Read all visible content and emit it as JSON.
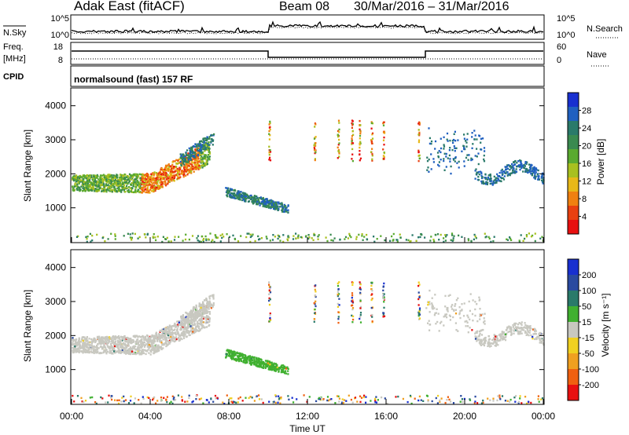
{
  "header": {
    "station": "Adak East (fitACF)",
    "beam": "Beam 08",
    "dates": "30/Mar/2016 – 31/Mar/2016"
  },
  "noise_panel": {
    "left_label": "N.Sky",
    "right_label": "N.Search",
    "left_ticks": [
      "10^5",
      "10^0"
    ],
    "right_ticks": [
      "10^5",
      "10^0"
    ]
  },
  "freq_panel": {
    "left_label_top": "Freq.",
    "left_label_bottom": "[MHz]",
    "right_label": "Nave",
    "left_ticks": [
      "18",
      "8"
    ],
    "right_ticks": [
      "60",
      "0"
    ]
  },
  "cpid_panel": {
    "label": "CPID",
    "program": "normalsound (fast) 157 RF"
  },
  "colors": {
    "power_scale": [
      "#1830d0",
      "#2060c0",
      "#2a7a6a",
      "#3a8a50",
      "#5aaa30",
      "#a8c020",
      "#e8b818",
      "#f08010",
      "#e84010",
      "#e81010"
    ],
    "velocity_scale": [
      "#1830d0",
      "#2a4aa0",
      "#2a7a6a",
      "#40b030",
      "#c8c8c0",
      "#f0d020",
      "#f0a020",
      "#f06010",
      "#e81010"
    ],
    "ground_scatter": "#c8c8c0"
  },
  "chart_data": [
    {
      "type": "heatmap",
      "name": "power",
      "ylabel": "Slant Range [km]",
      "y_ticks": [
        "4000",
        "3000",
        "2000",
        "1000"
      ],
      "ylim": [
        0,
        4500
      ],
      "colorbar_label": "Power [dB]",
      "colorbar_ticks": [
        "28",
        "24",
        "20",
        "16",
        "12",
        "8",
        "4"
      ],
      "colorbar_range": [
        0,
        32
      ]
    },
    {
      "type": "heatmap",
      "name": "velocity",
      "ylabel": "Slant Range [km]",
      "y_ticks": [
        "4000",
        "3000",
        "2000",
        "1000"
      ],
      "ylim": [
        0,
        4500
      ],
      "colorbar_label": "Velocity [m s⁻¹]",
      "colorbar_ticks": [
        "200",
        "100",
        "50",
        "15",
        "-15",
        "-50",
        "-100",
        "-200"
      ]
    },
    {
      "type": "line",
      "name": "time-axis",
      "xlabel": "Time UT",
      "x_ticks": [
        "00:00",
        "04:00",
        "08:00",
        "12:00",
        "16:00",
        "20:00",
        "00:00"
      ],
      "xlim_hours": [
        0,
        24
      ]
    }
  ]
}
